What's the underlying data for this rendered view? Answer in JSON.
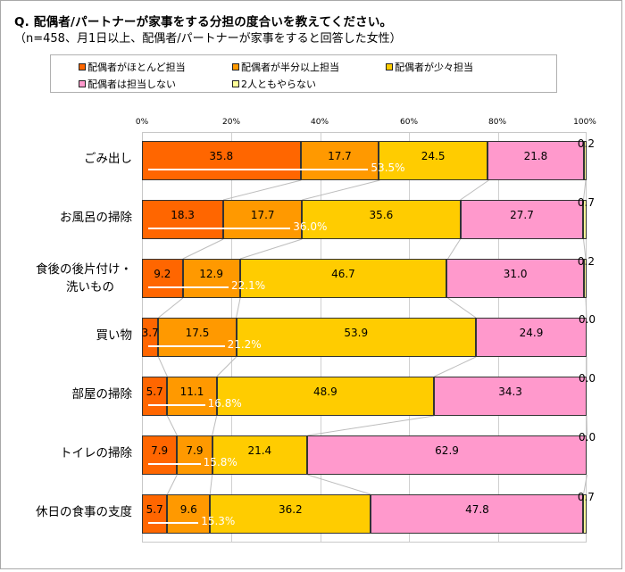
{
  "header": {
    "title": "Q.  配偶者/パートナーが家事をする分担の度合いを教えてください。",
    "subtitle": "（n=458、月1日以上、配偶者/パートナーが家事をすると回答した女性）"
  },
  "legend": {
    "items": [
      {
        "label": "配偶者がほとんど担当",
        "color": "#FF6600"
      },
      {
        "label": "配偶者が半分以上担当",
        "color": "#FF9900"
      },
      {
        "label": "配偶者が少々担当",
        "color": "#FFCC00"
      },
      {
        "label": "配偶者は担当しない",
        "color": "#FF99CC"
      },
      {
        "label": "2人ともやらない",
        "color": "#FFFF99"
      }
    ]
  },
  "axis": {
    "ticks": [
      "0%",
      "20%",
      "40%",
      "60%",
      "80%",
      "100%"
    ]
  },
  "rows": [
    {
      "label": "ごみ出し",
      "cum": "53.5%",
      "values": [
        "35.8",
        "17.7",
        "24.5",
        "21.8",
        "0.2"
      ]
    },
    {
      "label": "お風呂の掃除",
      "cum": "36.0%",
      "values": [
        "18.3",
        "17.7",
        "35.6",
        "27.7",
        "0.7"
      ]
    },
    {
      "label": "食後の後片付け・洗いもの",
      "label_line1": "食後の後片付け・",
      "label_line2": "洗いもの",
      "cum": "22.1%",
      "values": [
        "9.2",
        "12.9",
        "46.7",
        "31.0",
        "0.2"
      ]
    },
    {
      "label": "買い物",
      "cum": "21.2%",
      "values": [
        "3.7",
        "17.5",
        "53.9",
        "24.9",
        "0.0"
      ]
    },
    {
      "label": "部屋の掃除",
      "cum": "16.8%",
      "values": [
        "5.7",
        "11.1",
        "48.9",
        "34.3",
        "0.0"
      ]
    },
    {
      "label": "トイレの掃除",
      "cum": "15.8%",
      "values": [
        "7.9",
        "7.9",
        "21.4",
        "62.9",
        "0.0"
      ]
    },
    {
      "label": "休日の食事の支度",
      "cum": "15.3%",
      "values": [
        "5.7",
        "9.6",
        "36.2",
        "47.8",
        "0.7"
      ]
    }
  ],
  "chart_data": {
    "type": "bar",
    "orientation": "horizontal",
    "stacked": "100%",
    "title": "Q. 配偶者/パートナーが家事をする分担の度合いを教えてください。",
    "subtitle": "（n=458、月1日以上、配偶者/パートナーが家事をすると回答した女性）",
    "categories": [
      "ごみ出し",
      "お風呂の掃除",
      "食後の後片付け・洗いもの",
      "買い物",
      "部屋の掃除",
      "トイレの掃除",
      "休日の食事の支度"
    ],
    "series": [
      {
        "name": "配偶者がほとんど担当",
        "color": "#FF6600",
        "values": [
          35.8,
          18.3,
          9.2,
          3.7,
          5.7,
          7.9,
          5.7
        ]
      },
      {
        "name": "配偶者が半分以上担当",
        "color": "#FF9900",
        "values": [
          17.7,
          17.7,
          12.9,
          17.5,
          11.1,
          7.9,
          9.6
        ]
      },
      {
        "name": "配偶者が少々担当",
        "color": "#FFCC00",
        "values": [
          24.5,
          35.6,
          46.7,
          53.9,
          48.9,
          21.4,
          36.2
        ]
      },
      {
        "name": "配偶者は担当しない",
        "color": "#FF99CC",
        "values": [
          21.8,
          27.7,
          31.0,
          24.9,
          34.3,
          62.9,
          47.8
        ]
      },
      {
        "name": "2人ともやらない",
        "color": "#FFFF99",
        "values": [
          0.2,
          0.7,
          0.2,
          0.0,
          0.0,
          0.0,
          0.7
        ]
      }
    ],
    "annotations": {
      "cumulative_top2": [
        "53.5%",
        "36.0%",
        "22.1%",
        "21.2%",
        "16.8%",
        "15.8%",
        "15.3%"
      ]
    },
    "xlabel": "",
    "ylabel": "",
    "xlim": [
      0,
      100
    ],
    "x_ticks": [
      "0%",
      "20%",
      "40%",
      "60%",
      "80%",
      "100%"
    ],
    "grid": true,
    "legend_position": "top",
    "series_lines": true
  }
}
